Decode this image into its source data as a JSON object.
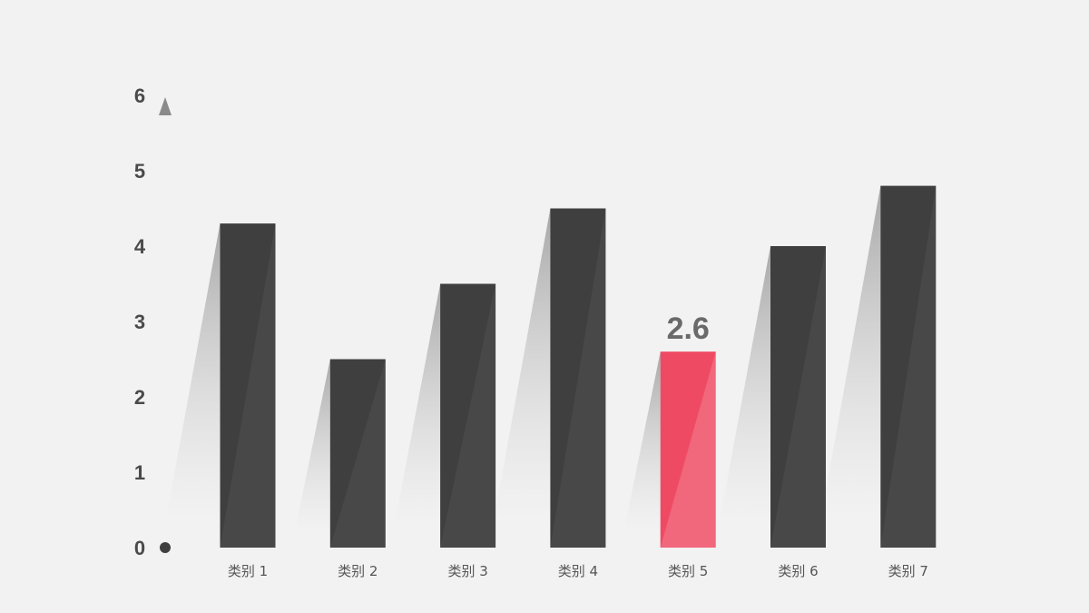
{
  "colors": {
    "background": "#f2f2f2",
    "bar": "#3f3f3f",
    "bar_highlight": "#ef4a64",
    "axis": "#7a7a7a",
    "label": "#555555"
  },
  "chart_data": {
    "type": "bar",
    "title": "",
    "xlabel": "",
    "ylabel": "",
    "categories": [
      "类别 1",
      "类别 2",
      "类别 3",
      "类别 4",
      "类别 5",
      "类别 6",
      "类别 7"
    ],
    "values": [
      4.3,
      2.5,
      3.5,
      4.5,
      2.6,
      4.0,
      4.8
    ],
    "ylim": [
      0,
      6
    ],
    "yticks": [
      "0",
      "1",
      "2",
      "3",
      "4",
      "5",
      "6"
    ],
    "highlight_index": 4,
    "highlight_label": "2.6",
    "grid": false,
    "legend": "none"
  }
}
